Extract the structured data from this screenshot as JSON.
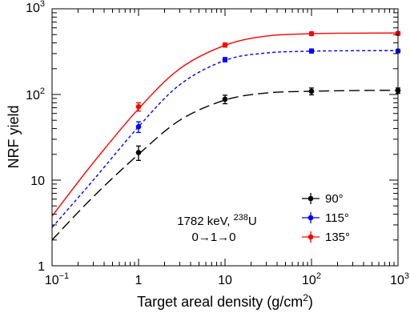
{
  "chart_data": {
    "type": "line",
    "xlabel": "Target areal density (g/cm",
    "xlabel_sup": "2",
    "xlabel_tail": ")",
    "ylabel": "NRF yield",
    "x_scale": "log",
    "y_scale": "log",
    "xlim": [
      0.1,
      1000
    ],
    "ylim": [
      1,
      1000
    ],
    "x_ticks": [
      {
        "value": 0.1,
        "base": "10",
        "exp": "−1"
      },
      {
        "value": 1,
        "base": "1",
        "exp": ""
      },
      {
        "value": 10,
        "base": "10",
        "exp": ""
      },
      {
        "value": 100,
        "base": "10",
        "exp": "2"
      },
      {
        "value": 1000,
        "base": "10",
        "exp": "3"
      }
    ],
    "y_ticks": [
      {
        "value": 1,
        "base": "1",
        "exp": ""
      },
      {
        "value": 10,
        "base": "10",
        "exp": ""
      },
      {
        "value": 100,
        "base": "10",
        "exp": "2"
      },
      {
        "value": 1000,
        "base": "10",
        "exp": "3"
      }
    ],
    "grid": false,
    "legend_position": "bottom-right",
    "annotation": {
      "line1": "1782 keV, ",
      "line1_sup": "238",
      "line1_tail": "U",
      "line2": "0→1→0"
    },
    "series": [
      {
        "name": "90°",
        "color": "#000000",
        "line_style": "long-dash",
        "points": [
          {
            "x": 1,
            "y": 21,
            "err": 4
          },
          {
            "x": 10,
            "y": 88,
            "err": 10
          },
          {
            "x": 100,
            "y": 109,
            "err": 10
          },
          {
            "x": 1000,
            "y": 111,
            "err": 8
          }
        ],
        "curve": [
          [
            0.1,
            2.0
          ],
          [
            0.3,
            6.4
          ],
          [
            1,
            20
          ],
          [
            3,
            50
          ],
          [
            10,
            86
          ],
          [
            30,
            104
          ],
          [
            100,
            109
          ],
          [
            300,
            111
          ],
          [
            1000,
            112
          ]
        ]
      },
      {
        "name": "115°",
        "color": "#0000ff",
        "line_style": "dotted",
        "points": [
          {
            "x": 1,
            "y": 42,
            "err": 6
          },
          {
            "x": 10,
            "y": 255,
            "err": 15
          },
          {
            "x": 100,
            "y": 322,
            "err": 18
          },
          {
            "x": 1000,
            "y": 322,
            "err": 15
          }
        ],
        "curve": [
          [
            0.1,
            2.8
          ],
          [
            0.3,
            10
          ],
          [
            1,
            42
          ],
          [
            3,
            130
          ],
          [
            10,
            250
          ],
          [
            30,
            305
          ],
          [
            100,
            320
          ],
          [
            300,
            324
          ],
          [
            1000,
            325
          ]
        ]
      },
      {
        "name": "135°",
        "color": "#ff0000",
        "line_style": "solid",
        "points": [
          {
            "x": 1,
            "y": 72,
            "err": 8
          },
          {
            "x": 10,
            "y": 378,
            "err": 20
          },
          {
            "x": 100,
            "y": 512,
            "err": 25
          },
          {
            "x": 1000,
            "y": 515,
            "err": 25
          }
        ],
        "curve": [
          [
            0.1,
            3.8
          ],
          [
            0.3,
            16
          ],
          [
            1,
            68
          ],
          [
            3,
            200
          ],
          [
            10,
            375
          ],
          [
            30,
            480
          ],
          [
            100,
            512
          ],
          [
            300,
            520
          ],
          [
            1000,
            522
          ]
        ]
      }
    ]
  }
}
